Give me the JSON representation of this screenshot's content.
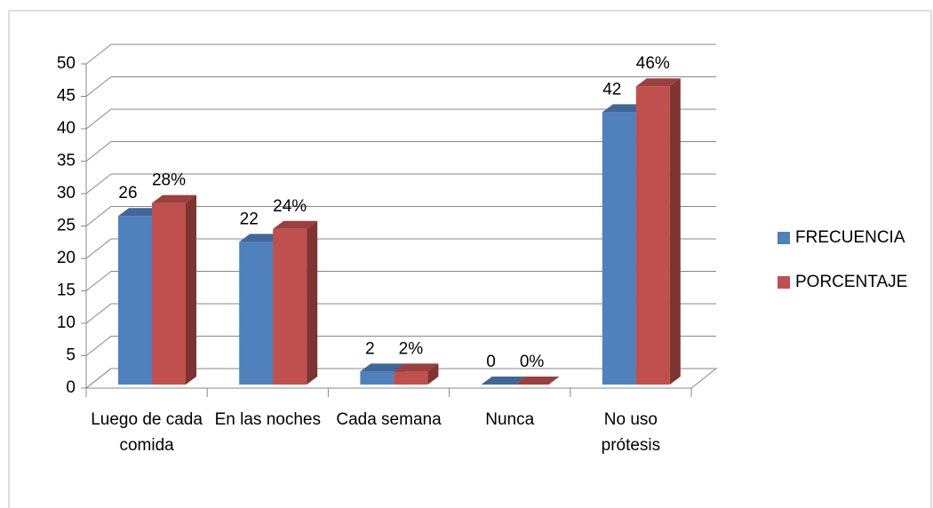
{
  "chart_data": {
    "type": "bar3d",
    "categories": [
      "Luego de cada comida",
      "En las noches",
      "Cada semana",
      "Nunca",
      "No uso prótesis"
    ],
    "series": [
      {
        "name": "FRECUENCIA",
        "color": "#4f81bd",
        "values": [
          26,
          22,
          2,
          0,
          42
        ]
      },
      {
        "name": "PORCENTAJE",
        "color": "#c0504d",
        "values": [
          28,
          24,
          2,
          0,
          46
        ],
        "value_labels": [
          "28%",
          "24%",
          "2%",
          "0%",
          "46%"
        ]
      }
    ],
    "ylim": [
      0,
      50
    ],
    "yticks": [
      0,
      5,
      10,
      15,
      20,
      25,
      30,
      35,
      40,
      45,
      50
    ],
    "grid": true,
    "legend": "right"
  }
}
